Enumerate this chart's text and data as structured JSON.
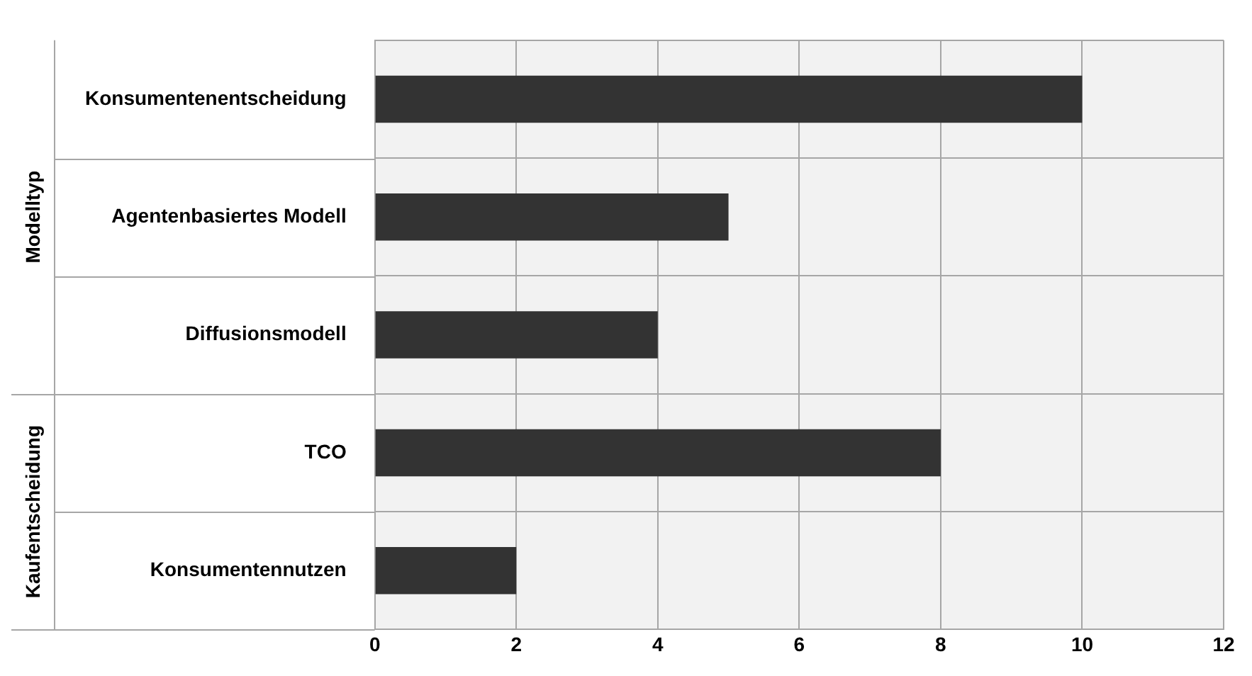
{
  "chart_data": {
    "type": "bar",
    "orientation": "horizontal",
    "categories": [
      "Konsumentenentscheidung",
      "Agentenbasiertes Modell",
      "Diffusionsmodell",
      "TCO",
      "Konsumentennutzen"
    ],
    "values": [
      10,
      5,
      4,
      8,
      2
    ],
    "color": "#333333",
    "xlim": [
      0,
      12
    ],
    "xticks": [
      0,
      2,
      4,
      6,
      8,
      10,
      12
    ],
    "grid": true,
    "legend": false,
    "annotations": [
      "Modelltyp",
      "Kaufentscheidung"
    ]
  }
}
